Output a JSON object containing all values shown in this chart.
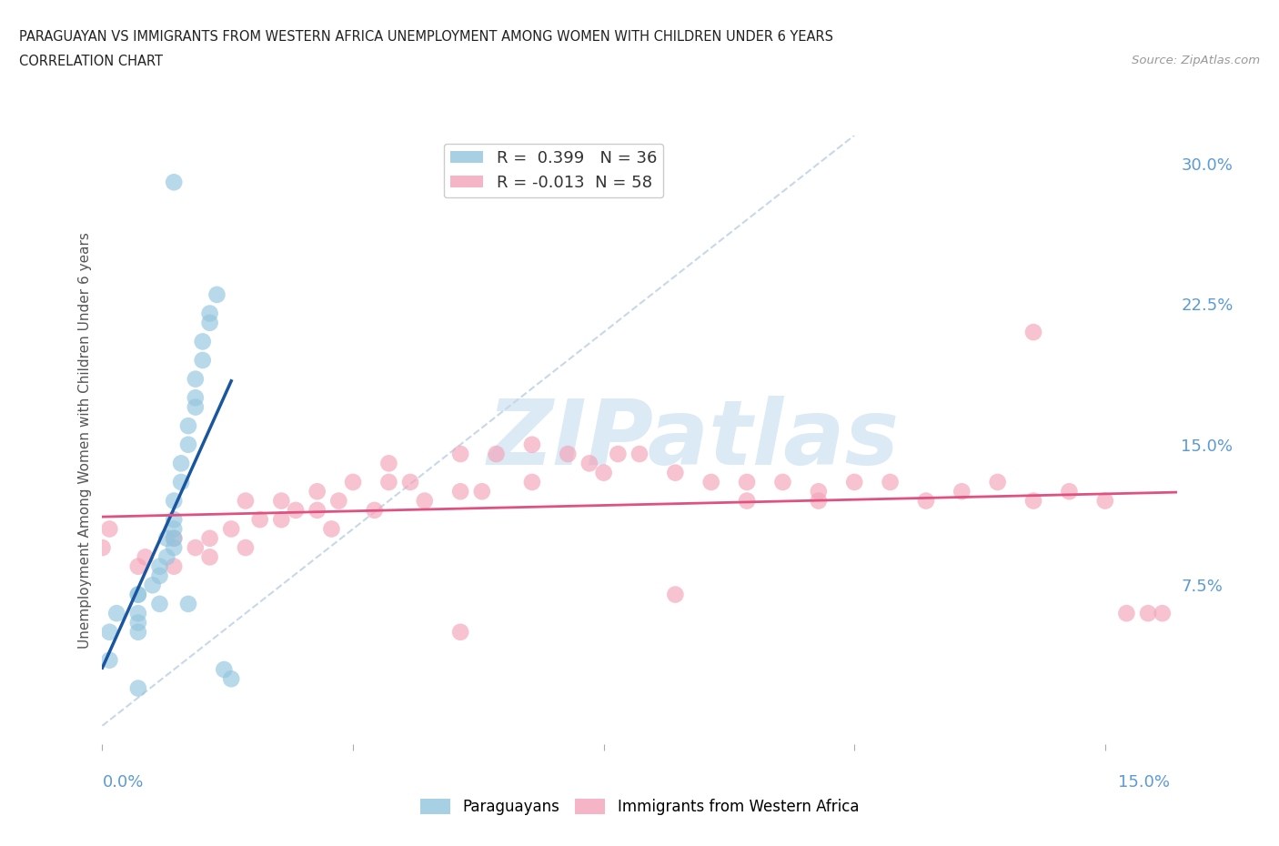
{
  "title_line1": "PARAGUAYAN VS IMMIGRANTS FROM WESTERN AFRICA UNEMPLOYMENT AMONG WOMEN WITH CHILDREN UNDER 6 YEARS",
  "title_line2": "CORRELATION CHART",
  "source": "Source: ZipAtlas.com",
  "ylabel": "Unemployment Among Women with Children Under 6 years",
  "xlim": [
    0.0,
    0.15
  ],
  "ylim": [
    -0.01,
    0.315
  ],
  "ytick_labels_right": [
    "7.5%",
    "15.0%",
    "22.5%",
    "30.0%"
  ],
  "ytick_vals_right": [
    0.075,
    0.15,
    0.225,
    0.3
  ],
  "r_blue": 0.399,
  "n_blue": 36,
  "r_pink": -0.013,
  "n_pink": 58,
  "blue_color": "#92c5de",
  "pink_color": "#f4a3b8",
  "blue_line_color": "#1a56a0",
  "pink_line_color": "#e05080",
  "diagonal_color": "#c8d8e8",
  "watermark_color": "#d8e8f4",
  "background_color": "#ffffff",
  "grid_color": "#dde8f0",
  "blue_points_x": [
    0.005,
    0.005,
    0.005,
    0.005,
    0.007,
    0.008,
    0.008,
    0.009,
    0.009,
    0.01,
    0.01,
    0.01,
    0.01,
    0.01,
    0.011,
    0.011,
    0.012,
    0.012,
    0.013,
    0.013,
    0.013,
    0.014,
    0.014,
    0.015,
    0.015,
    0.016,
    0.017,
    0.018,
    0.01,
    0.005,
    0.002,
    0.001,
    0.001,
    0.012,
    0.005,
    0.008
  ],
  "blue_points_y": [
    0.05,
    0.055,
    0.06,
    0.07,
    0.075,
    0.08,
    0.085,
    0.09,
    0.1,
    0.095,
    0.1,
    0.105,
    0.11,
    0.12,
    0.13,
    0.14,
    0.15,
    0.16,
    0.17,
    0.175,
    0.185,
    0.195,
    0.205,
    0.215,
    0.22,
    0.23,
    0.03,
    0.025,
    0.29,
    0.07,
    0.06,
    0.05,
    0.035,
    0.065,
    0.02,
    0.065
  ],
  "pink_points_x": [
    0.0,
    0.001,
    0.005,
    0.006,
    0.01,
    0.01,
    0.013,
    0.015,
    0.015,
    0.018,
    0.02,
    0.02,
    0.022,
    0.025,
    0.025,
    0.027,
    0.03,
    0.03,
    0.032,
    0.033,
    0.035,
    0.038,
    0.04,
    0.04,
    0.043,
    0.045,
    0.05,
    0.05,
    0.053,
    0.055,
    0.06,
    0.06,
    0.065,
    0.068,
    0.07,
    0.072,
    0.075,
    0.08,
    0.085,
    0.09,
    0.09,
    0.095,
    0.1,
    0.1,
    0.105,
    0.11,
    0.115,
    0.12,
    0.125,
    0.13,
    0.135,
    0.14,
    0.143,
    0.146,
    0.148,
    0.13,
    0.08,
    0.05
  ],
  "pink_points_y": [
    0.095,
    0.105,
    0.085,
    0.09,
    0.085,
    0.1,
    0.095,
    0.09,
    0.1,
    0.105,
    0.095,
    0.12,
    0.11,
    0.11,
    0.12,
    0.115,
    0.115,
    0.125,
    0.105,
    0.12,
    0.13,
    0.115,
    0.13,
    0.14,
    0.13,
    0.12,
    0.125,
    0.145,
    0.125,
    0.145,
    0.13,
    0.15,
    0.145,
    0.14,
    0.135,
    0.145,
    0.145,
    0.135,
    0.13,
    0.13,
    0.12,
    0.13,
    0.125,
    0.12,
    0.13,
    0.13,
    0.12,
    0.125,
    0.13,
    0.12,
    0.125,
    0.12,
    0.06,
    0.06,
    0.06,
    0.21,
    0.07,
    0.05
  ]
}
